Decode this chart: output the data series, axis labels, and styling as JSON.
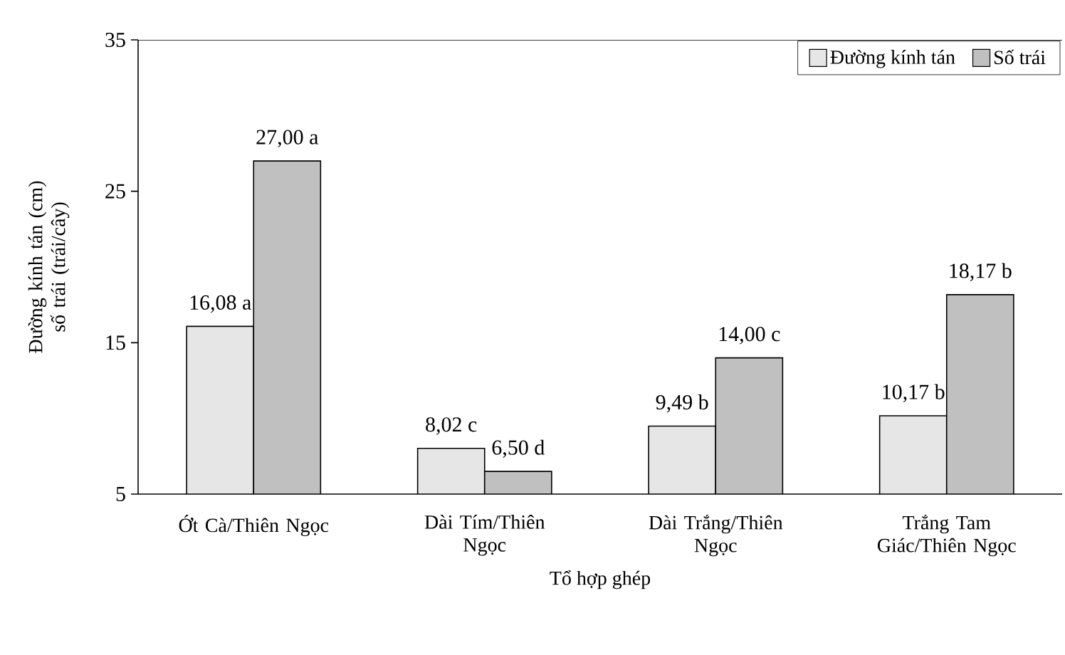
{
  "chart_data": {
    "type": "bar",
    "xlabel": "Tổ hợp ghép",
    "ylabel": "Đường kính tán (cm) số trái (trái/cây)",
    "categories": [
      "Ớt Cà/Thiên Ngọc",
      "Dài Tím/Thiên Ngọc",
      "Dài Trắng/Thiên Ngọc",
      "Trắng Tam Giác/Thiên Ngọc"
    ],
    "series": [
      {
        "name": "Đường kính tán",
        "color": "#e6e6e6",
        "values": [
          16.08,
          8.02,
          9.49,
          10.17
        ],
        "value_labels": [
          "16,08 a",
          "8,02 c",
          "9,49 b",
          "10,17 b"
        ]
      },
      {
        "name": "Số trái",
        "color": "#c0c0c0",
        "values": [
          27.0,
          6.5,
          14.0,
          18.17
        ],
        "value_labels": [
          "27,00 a",
          "6,50 d",
          "14,00 c",
          "18,17 b"
        ]
      }
    ],
    "ylim": [
      5,
      35
    ],
    "yticks": [
      5,
      15,
      25,
      35
    ],
    "legend": "top right",
    "grid": false
  }
}
